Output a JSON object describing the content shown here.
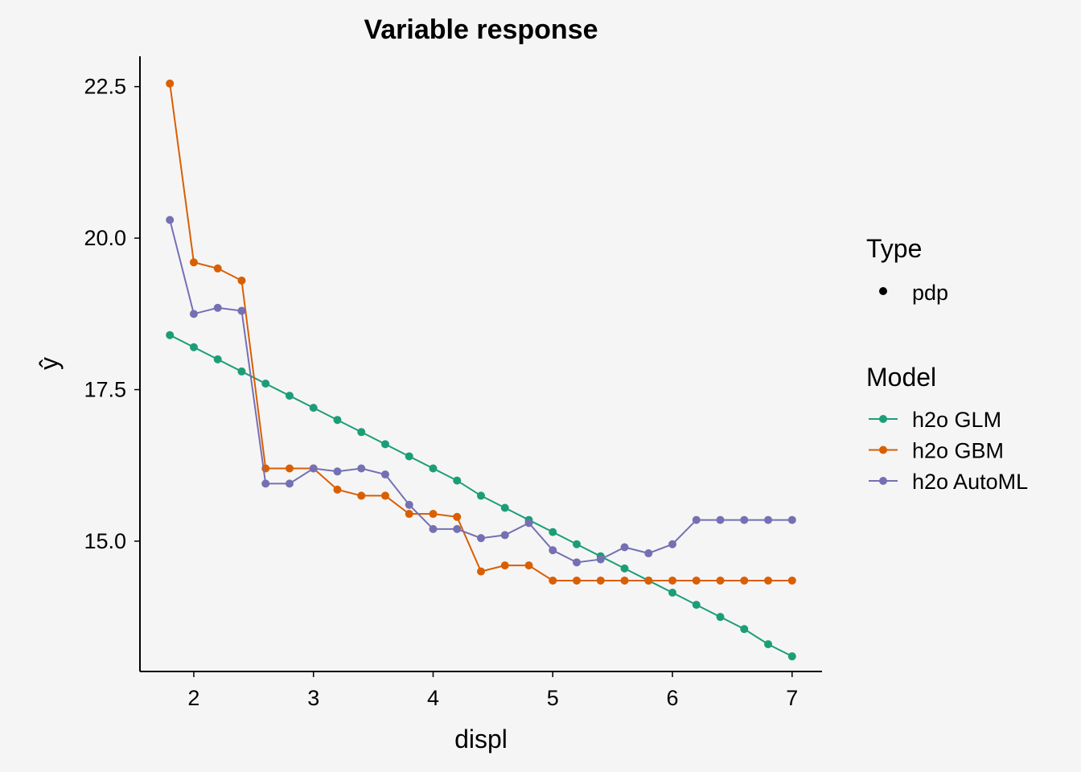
{
  "chart_data": {
    "type": "line",
    "title": "Variable response",
    "xlabel": "displ",
    "ylabel": "ŷ",
    "xlim": [
      1.55,
      7.25
    ],
    "ylim": [
      12.85,
      23.0
    ],
    "x_ticks": [
      "2",
      "3",
      "4",
      "5",
      "6",
      "7"
    ],
    "y_ticks": [
      "15.0",
      "17.5",
      "20.0",
      "22.5"
    ],
    "grid": false,
    "legend_position": "right",
    "x": [
      1.8,
      2.0,
      2.2,
      2.4,
      2.6,
      2.8,
      3.0,
      3.2,
      3.4,
      3.6,
      3.8,
      4.0,
      4.2,
      4.4,
      4.6,
      4.8,
      5.0,
      5.2,
      5.4,
      5.6,
      5.8,
      6.0,
      6.2,
      6.4,
      6.6,
      6.8,
      7.0
    ],
    "legend": {
      "type_title": "Type",
      "type_entries": [
        "pdp"
      ],
      "model_title": "Model"
    },
    "series": [
      {
        "name": "h2o GLM",
        "color": "#1b9e77",
        "values": [
          18.4,
          18.2,
          18.0,
          17.8,
          17.6,
          17.4,
          17.2,
          17.0,
          16.8,
          16.6,
          16.4,
          16.2,
          16.0,
          15.75,
          15.55,
          15.35,
          15.15,
          14.95,
          14.75,
          14.55,
          14.35,
          14.15,
          13.95,
          13.75,
          13.55,
          13.3,
          13.1
        ]
      },
      {
        "name": "h2o GBM",
        "color": "#d95f02",
        "values": [
          22.55,
          19.6,
          19.5,
          19.3,
          16.2,
          16.2,
          16.2,
          15.85,
          15.75,
          15.75,
          15.45,
          15.45,
          15.4,
          14.5,
          14.6,
          14.6,
          14.35,
          14.35,
          14.35,
          14.35,
          14.35,
          14.35,
          14.35,
          14.35,
          14.35,
          14.35,
          14.35
        ]
      },
      {
        "name": "h2o AutoML",
        "color": "#7570b3",
        "values": [
          20.3,
          18.75,
          18.85,
          18.8,
          15.95,
          15.95,
          16.2,
          16.15,
          16.2,
          16.1,
          15.6,
          15.2,
          15.2,
          15.05,
          15.1,
          15.3,
          14.85,
          14.65,
          14.7,
          14.9,
          14.8,
          14.95,
          15.35,
          15.35,
          15.35,
          15.35,
          15.35
        ]
      }
    ]
  }
}
